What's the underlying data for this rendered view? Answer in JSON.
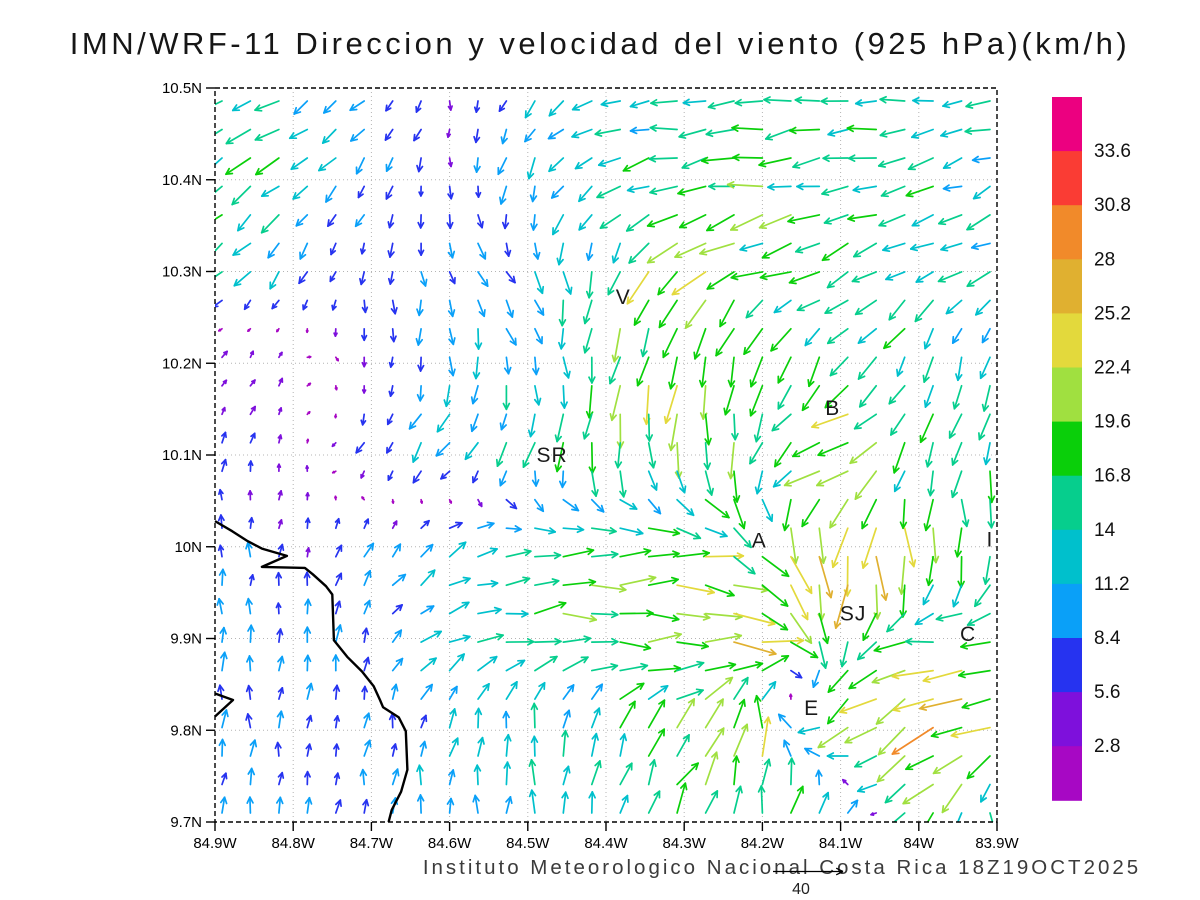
{
  "title": "IMN/WRF-11 Direccion y velocidad del viento (925 hPa)(km/h)",
  "caption": "Instituto Meteorologico Nacional Costa Rica  18Z19OCT2025",
  "reference_arrow": {
    "label": "40",
    "speed_kmh": 40
  },
  "axes": {
    "lat_tick_labels": [
      "10.5N",
      "10.4N",
      "10.3N",
      "10.2N",
      "10.1N",
      "10N",
      "9.9N",
      "9.8N",
      "9.7N"
    ],
    "lat_tick_values": [
      10.5,
      10.4,
      10.3,
      10.2,
      10.1,
      10.0,
      9.9,
      9.8,
      9.7
    ],
    "lon_tick_labels": [
      "84.9W",
      "84.8W",
      "84.7W",
      "84.6W",
      "84.5W",
      "84.4W",
      "84.3W",
      "84.2W",
      "84.1W",
      "84W",
      "83.9W"
    ],
    "lon_tick_values": [
      -84.9,
      -84.8,
      -84.7,
      -84.6,
      -84.5,
      -84.4,
      -84.3,
      -84.2,
      -84.1,
      -84.0,
      -83.9
    ]
  },
  "colorbar": {
    "boundary_labels_top_to_bottom": [
      "33.6",
      "30.8",
      "28",
      "25.2",
      "22.4",
      "19.6",
      "16.8",
      "14",
      "11.2",
      "8.4",
      "5.6",
      "2.8"
    ]
  },
  "cities": [
    {
      "label": "V",
      "lon": -84.378,
      "lat": 10.272
    },
    {
      "label": "SR",
      "lon": -84.469,
      "lat": 10.1
    },
    {
      "label": "B",
      "lon": -84.11,
      "lat": 10.151
    },
    {
      "label": "A",
      "lon": -84.204,
      "lat": 10.007
    },
    {
      "label": "SJ",
      "lon": -84.084,
      "lat": 9.927
    },
    {
      "label": "C",
      "lon": -83.937,
      "lat": 9.905
    },
    {
      "label": "E",
      "lon": -84.137,
      "lat": 9.824
    },
    {
      "label": "I",
      "lon": -83.909,
      "lat": 10.008
    }
  ],
  "coastline": {
    "main": [
      [
        -84.9,
        10.028
      ],
      [
        -84.878,
        10.017
      ],
      [
        -84.858,
        10.006
      ],
      [
        -84.84,
        9.998
      ],
      [
        -84.808,
        9.99
      ],
      [
        -84.84,
        9.978
      ],
      [
        -84.785,
        9.977
      ],
      [
        -84.775,
        9.97
      ],
      [
        -84.758,
        9.957
      ],
      [
        -84.75,
        9.948
      ],
      [
        -84.748,
        9.898
      ],
      [
        -84.731,
        9.88
      ],
      [
        -84.712,
        9.864
      ],
      [
        -84.697,
        9.848
      ],
      [
        -84.689,
        9.833
      ],
      [
        -84.685,
        9.825
      ],
      [
        -84.665,
        9.814
      ],
      [
        -84.656,
        9.799
      ],
      [
        -84.654,
        9.757
      ],
      [
        -84.662,
        9.733
      ],
      [
        -84.674,
        9.713
      ],
      [
        -84.678,
        9.7
      ]
    ],
    "peninsula": [
      [
        -84.9,
        9.84
      ],
      [
        -84.877,
        9.833
      ],
      [
        -84.9,
        9.815
      ]
    ]
  },
  "chart_data": {
    "type": "vector_field",
    "title": "IMN/WRF-11 Direccion y velocidad del viento (925 hPa)(km/h)",
    "units": "km/h",
    "level": "925 hPa",
    "valid_time": "18Z19OCT2025",
    "lon_range": [
      -84.9,
      -83.9
    ],
    "lat_range": [
      9.7,
      10.5
    ],
    "grid_lons": [
      -84.9,
      -84.8,
      -84.7,
      -84.6,
      -84.5,
      -84.4,
      -84.3,
      -84.2,
      -84.1,
      -84.0,
      -83.9
    ],
    "grid_lats": [
      10.5,
      10.4,
      10.3,
      10.2,
      10.1,
      10.0,
      9.9,
      9.8,
      9.7
    ],
    "dir_toward_deg": [
      [
        205,
        212,
        225,
        265,
        245,
        195,
        185,
        183,
        185,
        188,
        192
      ],
      [
        213,
        222,
        245,
        268,
        250,
        210,
        193,
        190,
        192,
        198,
        203
      ],
      [
        222,
        235,
        262,
        288,
        305,
        255,
        230,
        202,
        208,
        213,
        208
      ],
      [
        60,
        45,
        275,
        268,
        282,
        262,
        250,
        265,
        232,
        247,
        258
      ],
      [
        85,
        70,
        235,
        228,
        252,
        268,
        278,
        248,
        185,
        255,
        262
      ],
      [
        90,
        85,
        60,
        30,
        8,
        3,
        0,
        315,
        270,
        282,
        272
      ],
      [
        90,
        88,
        75,
        20,
        5,
        0,
        0,
        350,
        265,
        185,
        185
      ],
      [
        90,
        85,
        80,
        75,
        85,
        70,
        48,
        88,
        200,
        215,
        195
      ],
      [
        78,
        82,
        85,
        90,
        90,
        85,
        62,
        88,
        50,
        225,
        300
      ]
    ],
    "speed_kmh": [
      [
        13,
        14,
        9,
        5,
        9,
        12,
        13,
        14,
        14,
        13,
        12
      ],
      [
        16,
        14,
        9,
        6,
        11,
        14,
        16,
        17,
        15,
        14,
        13
      ],
      [
        14,
        10,
        6,
        8,
        11,
        15,
        22,
        17,
        15,
        14,
        13
      ],
      [
        5,
        4,
        6,
        10,
        12,
        17,
        21,
        19,
        16,
        14,
        12
      ],
      [
        6,
        4,
        8,
        12,
        14,
        16,
        18,
        17,
        27,
        16,
        15
      ],
      [
        8,
        6,
        8,
        12,
        16,
        18,
        20,
        22,
        30,
        21,
        17
      ],
      [
        9,
        8,
        9,
        14,
        17,
        20,
        22,
        22,
        20,
        18,
        21
      ],
      [
        9,
        8,
        8,
        10,
        12,
        15,
        18,
        20,
        22,
        24,
        22
      ],
      [
        8,
        8,
        9,
        10,
        12,
        13,
        16,
        18,
        17,
        22,
        20
      ]
    ],
    "speed_levels_kmh": [
      2.8,
      5.6,
      8.4,
      11.2,
      14,
      16.8,
      19.6,
      22.4,
      25.2,
      28,
      30.8,
      33.6
    ],
    "speed_colors_low_to_high": [
      "#A708C4",
      "#7E10DC",
      "#2633F0",
      "#0AA0F8",
      "#00C0CC",
      "#06CE8D",
      "#0ACF0A",
      "#A0E040",
      "#E3D93C",
      "#E0B030",
      "#F18A2A",
      "#FA3C34",
      "#EC0080"
    ],
    "reference_speed_kmh": 40
  },
  "style_colors": {
    "frame": "#000000",
    "grid": "#b4b4b4",
    "coast": "#000000"
  }
}
